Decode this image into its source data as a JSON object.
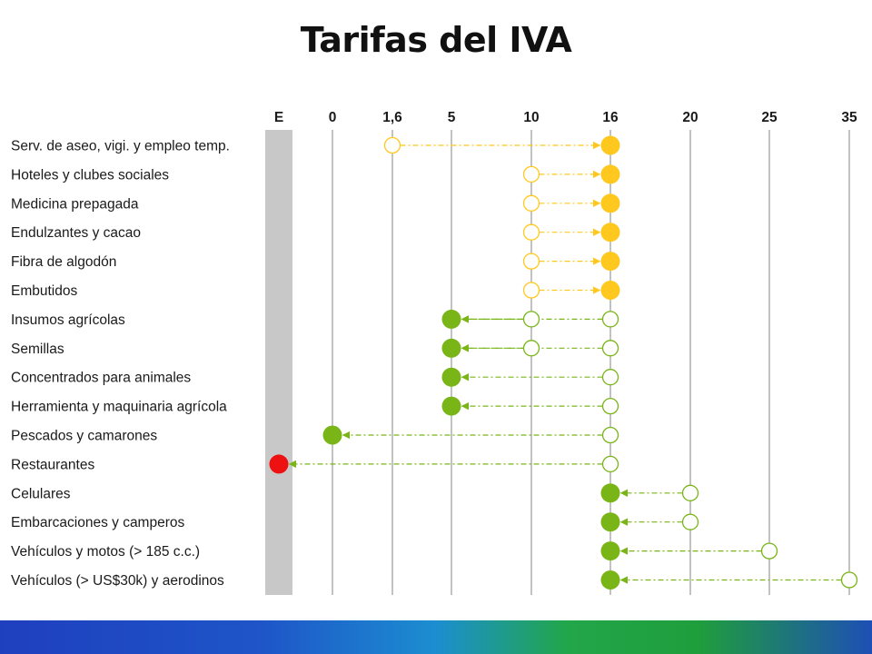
{
  "chart_data": {
    "type": "scatter",
    "title": "Tarifas del IVA",
    "x_ticks": [
      "E",
      "0",
      "1,6",
      "5",
      "10",
      "16",
      "20",
      "25",
      "35"
    ],
    "colors": {
      "increase": "#ffc81e",
      "decrease": "#7ab518",
      "exempt": "#ee1111",
      "exempt_bar": "#c8c8c8",
      "gridline": "#9a9a9a"
    },
    "rows": [
      {
        "label": "Serv. de aseo, vigi. y empleo temp.",
        "from": [
          "1,6"
        ],
        "to": "16",
        "group": "increase"
      },
      {
        "label": "Hoteles y clubes sociales",
        "from": [
          "10"
        ],
        "to": "16",
        "group": "increase"
      },
      {
        "label": "Medicina prepagada",
        "from": [
          "10"
        ],
        "to": "16",
        "group": "increase"
      },
      {
        "label": "Endulzantes y cacao",
        "from": [
          "10"
        ],
        "to": "16",
        "group": "increase"
      },
      {
        "label": "Fibra de algodón",
        "from": [
          "10"
        ],
        "to": "16",
        "group": "increase"
      },
      {
        "label": "Embutidos",
        "from": [
          "10"
        ],
        "to": "16",
        "group": "increase"
      },
      {
        "label": "Insumos agrícolas",
        "from": [
          "10",
          "16"
        ],
        "to": "5",
        "group": "decrease"
      },
      {
        "label": "Semillas",
        "from": [
          "10",
          "16"
        ],
        "to": "5",
        "group": "decrease"
      },
      {
        "label": "Concentrados para animales",
        "from": [
          "16"
        ],
        "to": "5",
        "group": "decrease"
      },
      {
        "label": "Herramienta y maquinaria agrícola",
        "from": [
          "16"
        ],
        "to": "5",
        "group": "decrease"
      },
      {
        "label": "Pescados y camarones",
        "from": [
          "16"
        ],
        "to": "0",
        "group": "decrease"
      },
      {
        "label": "Restaurantes",
        "from": [
          "16"
        ],
        "to": "E",
        "group": "exempt"
      },
      {
        "label": "Celulares",
        "from": [
          "20"
        ],
        "to": "16",
        "group": "decrease"
      },
      {
        "label": "Embarcaciones y camperos",
        "from": [
          "20"
        ],
        "to": "16",
        "group": "decrease"
      },
      {
        "label": "Vehículos y motos (> 185 c.c.)",
        "from": [
          "25"
        ],
        "to": "16",
        "group": "decrease"
      },
      {
        "label": "Vehículos (> US$30k) y aerodinos",
        "from": [
          "35"
        ],
        "to": "16",
        "group": "decrease"
      }
    ]
  }
}
